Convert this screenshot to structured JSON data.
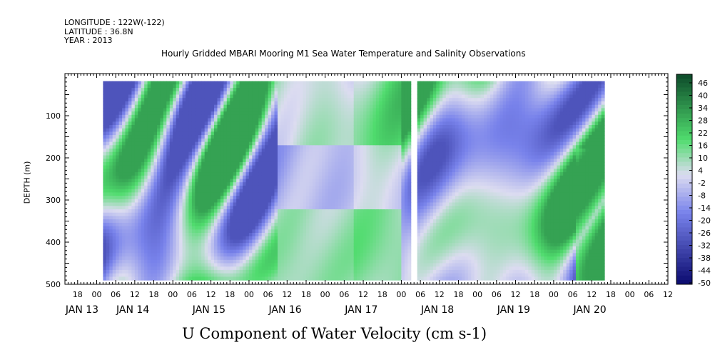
{
  "header": {
    "longitude": "LONGITUDE : 122W(-122)",
    "latitude": "LATITUDE : 36.8N",
    "year": "YEAR : 2013"
  },
  "chart_data": {
    "type": "heatmap",
    "title": "Hourly Gridded MBARI Mooring M1 Sea Water Temperature and Salinity Observations",
    "xlabel": "U Component of Water Velocity (cm s-1)",
    "ylabel": "DEPTH (m)",
    "y_range": [
      0,
      500
    ],
    "y_reversed": true,
    "y_ticks": [
      100,
      200,
      300,
      400,
      500
    ],
    "x_range_hours": [
      -10,
      180
    ],
    "x_hour_ticks": [
      "18",
      "00",
      "06",
      "12",
      "18",
      "00",
      "06",
      "12",
      "18",
      "00",
      "06",
      "12",
      "18",
      "00",
      "06",
      "12",
      "18",
      "00",
      "06",
      "12",
      "18",
      "00",
      "06",
      "12",
      "18",
      "00",
      "06",
      "12",
      "18",
      "00",
      "06",
      "12"
    ],
    "x_hour_tick_values": [
      -6,
      0,
      6,
      12,
      18,
      24,
      30,
      36,
      42,
      48,
      54,
      60,
      66,
      72,
      78,
      84,
      90,
      96,
      102,
      108,
      114,
      120,
      126,
      132,
      138,
      144,
      150,
      156,
      162,
      168,
      174,
      180
    ],
    "date_labels": [
      "JAN 13",
      "JAN 14",
      "JAN 15",
      "JAN 16",
      "JAN 17",
      "JAN 18",
      "JAN 19",
      "JAN 20"
    ],
    "date_label_values": [
      -10,
      6,
      30,
      54,
      78,
      102,
      126,
      150
    ],
    "data_hours": [
      2,
      160
    ],
    "data_depths": [
      18,
      485
    ],
    "gap_hours": [
      99,
      101
    ],
    "colorbar": {
      "levels": [
        -50,
        -44,
        -38,
        -32,
        -26,
        -20,
        -14,
        -8,
        -2,
        4,
        10,
        16,
        22,
        28,
        34,
        40,
        46
      ],
      "low_color": "#0a0a6e",
      "mid_color": "#dcdcf0",
      "high_color": "#0d4a2a"
    }
  }
}
